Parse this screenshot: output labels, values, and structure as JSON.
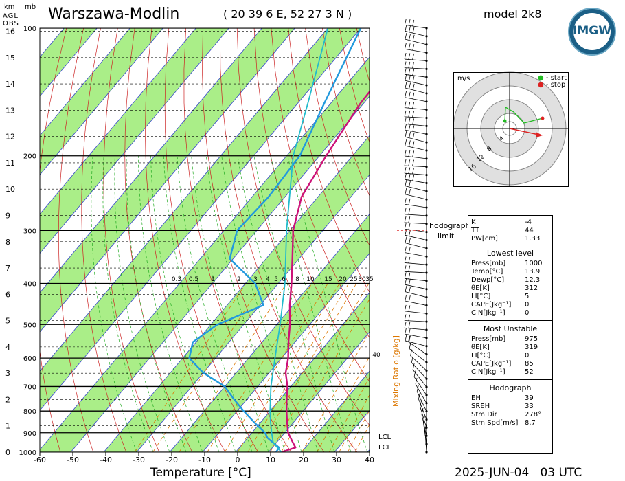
{
  "header": {
    "station": "Warszawa-Modlin",
    "coords": "( 20 39 6 E, 52 27 3 N )",
    "model": "model 2k8",
    "datetime": "2025-JUN-04   03 UTC",
    "logo_text": "IMGW"
  },
  "axes": {
    "km_label": "km",
    "mb_label": "mb",
    "agl_lines": [
      "AGL",
      "OBS"
    ],
    "xlabel": "Temperature [°C]",
    "mixing_label": "Mixing Ratio [g/kg]",
    "km_ticks": [
      "16",
      "15",
      "14",
      "13",
      "12",
      "11",
      "10",
      "9",
      "8",
      "7",
      "6",
      "5",
      "4",
      "3",
      "2",
      "1",
      "0"
    ],
    "p_ticks": [
      "100",
      "200",
      "300",
      "400",
      "500",
      "600",
      "700",
      "800",
      "900",
      "1000"
    ],
    "t_ticks": [
      "-60",
      "-50",
      "-40",
      "-30",
      "-20",
      "-10",
      "0",
      "10",
      "20",
      "30",
      "40"
    ],
    "mix_ticks": [
      "0.3",
      "0.5",
      "1",
      "2",
      "3",
      "4",
      "5",
      "6",
      "8",
      "10",
      "15",
      "20",
      "25",
      "30",
      "35"
    ],
    "mix_40": "40",
    "hodograph_limit": [
      "hodograph",
      "limit"
    ],
    "lcl_labels": [
      "LCL",
      "LCL"
    ]
  },
  "hodograph": {
    "unit": "m/s",
    "legend_start": "start",
    "legend_stop": "stop",
    "ring_labels": [
      "4",
      "8",
      "12",
      "16"
    ]
  },
  "indices": {
    "top": [
      {
        "k": "K",
        "v": "-4"
      },
      {
        "k": "TT",
        "v": "44"
      },
      {
        "k": "PW[cm]",
        "v": "1.33"
      }
    ],
    "lowest_title": "Lowest level",
    "lowest": [
      {
        "k": "Press[mb]",
        "v": "1000"
      },
      {
        "k": "Temp[°C]",
        "v": "13.9"
      },
      {
        "k": "Dewp[°C]",
        "v": "12.3"
      },
      {
        "k": "θE[K]",
        "v": "312"
      },
      {
        "k": "LI[°C]",
        "v": "5"
      },
      {
        "k": "CAPE[Jkg⁻¹]",
        "v": "0"
      },
      {
        "k": "CIN[Jkg⁻¹]",
        "v": "0"
      }
    ],
    "unstable_title": "Most Unstable",
    "unstable": [
      {
        "k": "Press[mb]",
        "v": "975"
      },
      {
        "k": "θE[K]",
        "v": "319"
      },
      {
        "k": "LI[°C]",
        "v": "0"
      },
      {
        "k": "CAPE[Jkg⁻¹]",
        "v": "85"
      },
      {
        "k": "CIN[Jkg⁻¹]",
        "v": "52"
      }
    ],
    "hodo_title": "Hodograph",
    "hodo": [
      {
        "k": "EH",
        "v": "39"
      },
      {
        "k": "SREH",
        "v": "33"
      },
      {
        "k": "Stm Dir",
        "v": "278°"
      },
      {
        "k": "Stm Spd[m/s]",
        "v": "8.7"
      }
    ]
  },
  "colors": {
    "dry_band": "#aaee88",
    "isotherm": "#3344cc",
    "dry_adiabat": "#cc2222",
    "moist_adiabat": "#22aa22",
    "mixing_ratio": "#dd7700",
    "temperature": "#cc1177",
    "dewpoint": "#2299dd",
    "parcel": "#22bbcc"
  },
  "chart_data": {
    "type": "line",
    "title": "Warszawa-Modlin",
    "xlabel": "Temperature [°C]",
    "ylabel": "mb",
    "xlim": [
      -60,
      40
    ],
    "ylim": [
      1000,
      100
    ],
    "series": [
      {
        "name": "temperature",
        "points": [
          [
            1000,
            13.9
          ],
          [
            975,
            17
          ],
          [
            950,
            15
          ],
          [
            900,
            11
          ],
          [
            850,
            8
          ],
          [
            800,
            5
          ],
          [
            750,
            2
          ],
          [
            700,
            -1
          ],
          [
            650,
            -5
          ],
          [
            600,
            -8
          ],
          [
            550,
            -12
          ],
          [
            500,
            -16
          ],
          [
            450,
            -21
          ],
          [
            400,
            -26
          ],
          [
            350,
            -32
          ],
          [
            300,
            -39
          ],
          [
            250,
            -45
          ],
          [
            200,
            -48
          ],
          [
            150,
            -51
          ],
          [
            100,
            -52
          ]
        ]
      },
      {
        "name": "dewpoint",
        "points": [
          [
            1000,
            12.3
          ],
          [
            975,
            12
          ],
          [
            950,
            9
          ],
          [
            925,
            6
          ],
          [
            900,
            4
          ],
          [
            875,
            1
          ],
          [
            850,
            -2
          ],
          [
            800,
            -8
          ],
          [
            750,
            -14
          ],
          [
            700,
            -20
          ],
          [
            650,
            -30
          ],
          [
            600,
            -38
          ],
          [
            550,
            -41
          ],
          [
            500,
            -38
          ],
          [
            450,
            -29
          ],
          [
            400,
            -37
          ],
          [
            350,
            -51
          ],
          [
            300,
            -56
          ],
          [
            250,
            -55
          ],
          [
            200,
            -56
          ],
          [
            150,
            -62
          ],
          [
            100,
            -70
          ]
        ]
      },
      {
        "name": "parcel",
        "points": [
          [
            1000,
            13.9
          ],
          [
            950,
            9
          ],
          [
            900,
            6
          ],
          [
            850,
            3
          ],
          [
            800,
            0
          ],
          [
            700,
            -6
          ],
          [
            600,
            -12
          ],
          [
            500,
            -19
          ],
          [
            400,
            -28
          ],
          [
            300,
            -41
          ],
          [
            200,
            -58
          ],
          [
            150,
            -67
          ],
          [
            100,
            -80
          ]
        ]
      }
    ]
  }
}
